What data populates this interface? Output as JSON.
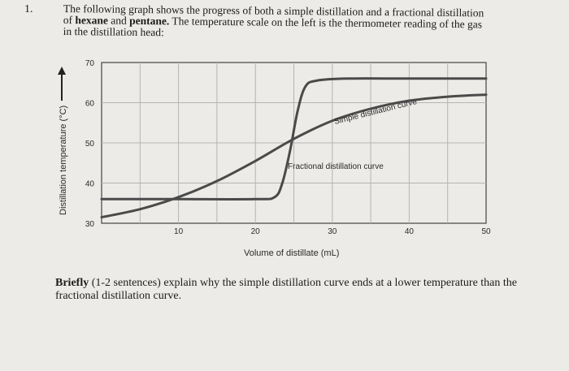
{
  "question": {
    "number": "1.",
    "line1_prefix": "The following graph shows the progress of both a simple distillation and a fractional distillation",
    "line2_a": "of ",
    "hexane": "hexane",
    "line2_b": " and ",
    "pentane": "pentane.",
    "line2_c": " The temperature scale on the left is the thermometer reading of the gas",
    "line3": "in the distillation head:"
  },
  "prompt": {
    "bold": "Briefly",
    "rest": " (1-2 sentences) explain why the simple distillation curve ends at a lower temperature than the fractional distillation curve."
  },
  "chart_data": {
    "type": "line",
    "xlabel": "Volume of distillate (mL)",
    "ylabel": "Distillation temperature (°C)",
    "xlim": [
      0,
      50
    ],
    "ylim": [
      30,
      70
    ],
    "x_ticks": [
      "10",
      "20",
      "30",
      "40",
      "50"
    ],
    "y_ticks": [
      "30",
      "40",
      "50",
      "60",
      "70"
    ],
    "series": [
      {
        "name": "Simple distillation curve",
        "x": [
          0,
          5,
          10,
          15,
          20,
          25,
          30,
          35,
          40,
          45,
          50
        ],
        "y": [
          31.5,
          33.5,
          36.5,
          40.5,
          45.5,
          51,
          55.5,
          58.5,
          60.5,
          61.5,
          62
        ]
      },
      {
        "name": "Fractional distillation curve",
        "x": [
          0,
          10,
          20,
          22.5,
          23.5,
          24.5,
          25.5,
          26.5,
          28,
          32,
          40,
          50
        ],
        "y": [
          36,
          36,
          36,
          36.5,
          40,
          48,
          58,
          64,
          65.5,
          66,
          66,
          66
        ]
      }
    ],
    "annotations": [
      "Simple distillation curve",
      "Fractional distillation curve"
    ],
    "grid": true,
    "colors": {
      "curve": "#4a4a4a",
      "grid": "#b4b4b4"
    }
  }
}
